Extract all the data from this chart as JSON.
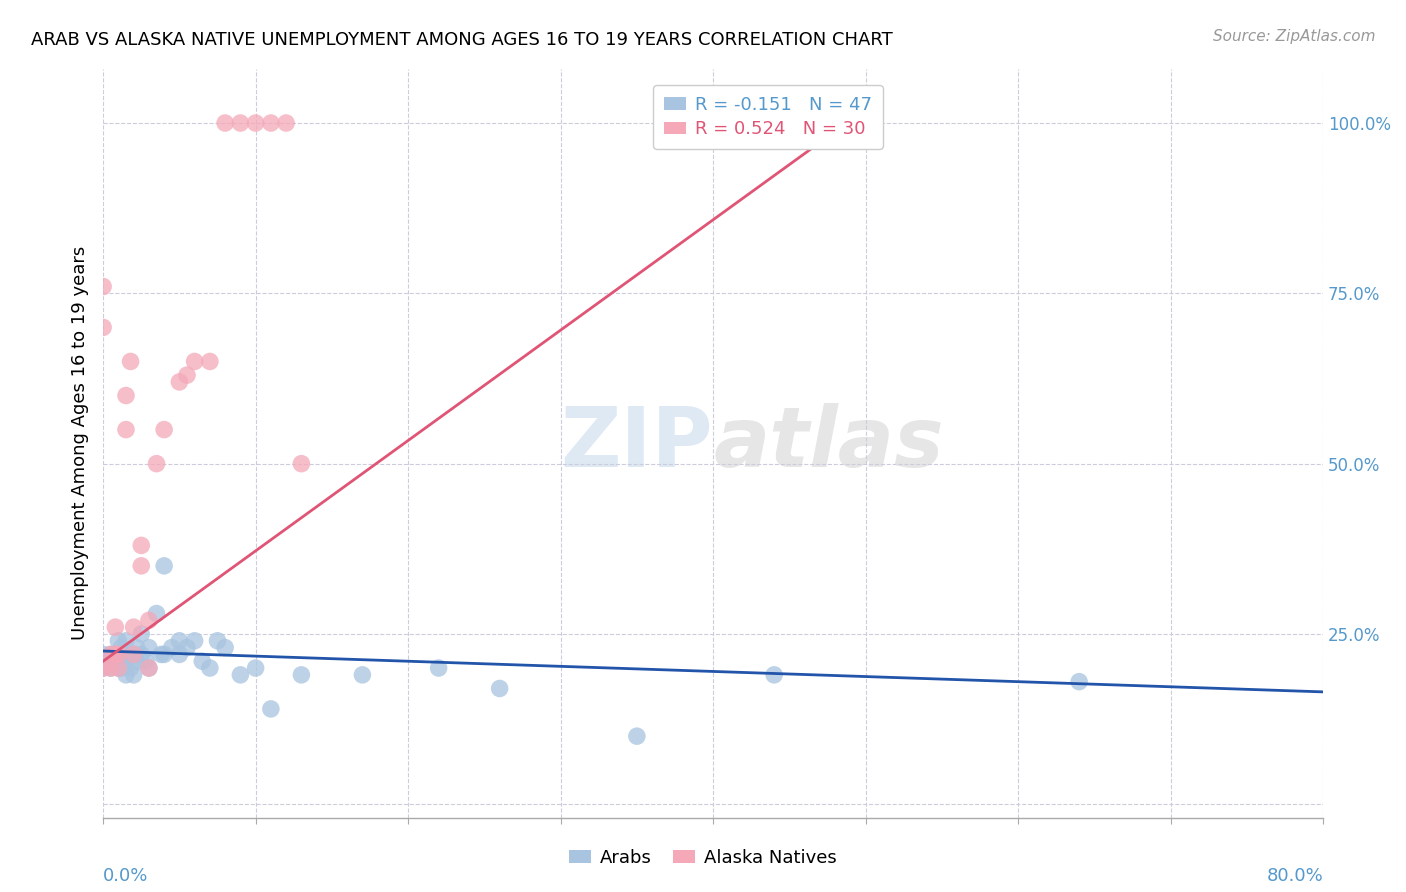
{
  "title": "ARAB VS ALASKA NATIVE UNEMPLOYMENT AMONG AGES 16 TO 19 YEARS CORRELATION CHART",
  "source": "Source: ZipAtlas.com",
  "ylabel": "Unemployment Among Ages 16 to 19 years",
  "xlim": [
    0.0,
    0.8
  ],
  "ylim": [
    -0.02,
    1.08
  ],
  "arab_color": "#a8c4e0",
  "alaska_color": "#f4a8b8",
  "arab_line_color": "#2255aa",
  "alaska_line_color": "#e05575",
  "arab_r": -0.151,
  "arab_n": 47,
  "alaska_r": 0.524,
  "alaska_n": 30,
  "arab_x": [
    0.0,
    0.0,
    0.005,
    0.005,
    0.008,
    0.01,
    0.01,
    0.01,
    0.012,
    0.012,
    0.015,
    0.015,
    0.015,
    0.018,
    0.018,
    0.02,
    0.02,
    0.022,
    0.022,
    0.025,
    0.025,
    0.028,
    0.03,
    0.03,
    0.035,
    0.038,
    0.04,
    0.04,
    0.045,
    0.05,
    0.05,
    0.055,
    0.06,
    0.065,
    0.07,
    0.075,
    0.08,
    0.09,
    0.1,
    0.11,
    0.13,
    0.17,
    0.22,
    0.26,
    0.35,
    0.44,
    0.64
  ],
  "arab_y": [
    0.2,
    0.22,
    0.2,
    0.22,
    0.21,
    0.2,
    0.22,
    0.24,
    0.2,
    0.23,
    0.19,
    0.21,
    0.24,
    0.2,
    0.22,
    0.19,
    0.22,
    0.21,
    0.23,
    0.22,
    0.25,
    0.21,
    0.2,
    0.23,
    0.28,
    0.22,
    0.22,
    0.35,
    0.23,
    0.22,
    0.24,
    0.23,
    0.24,
    0.21,
    0.2,
    0.24,
    0.23,
    0.19,
    0.2,
    0.14,
    0.19,
    0.19,
    0.2,
    0.17,
    0.1,
    0.19,
    0.18
  ],
  "alaska_x": [
    0.0,
    0.0,
    0.0,
    0.005,
    0.005,
    0.008,
    0.008,
    0.01,
    0.01,
    0.015,
    0.015,
    0.018,
    0.02,
    0.02,
    0.025,
    0.025,
    0.03,
    0.03,
    0.035,
    0.04,
    0.05,
    0.055,
    0.06,
    0.07,
    0.08,
    0.09,
    0.1,
    0.11,
    0.12,
    0.13
  ],
  "alaska_y": [
    0.2,
    0.7,
    0.76,
    0.2,
    0.22,
    0.22,
    0.26,
    0.2,
    0.22,
    0.55,
    0.6,
    0.65,
    0.22,
    0.26,
    0.35,
    0.38,
    0.2,
    0.27,
    0.5,
    0.55,
    0.62,
    0.63,
    0.65,
    0.65,
    1.0,
    1.0,
    1.0,
    1.0,
    1.0,
    0.5
  ],
  "arab_line_x": [
    0.0,
    0.8
  ],
  "arab_line_y": [
    0.225,
    0.165
  ],
  "alaska_line_x": [
    0.0,
    0.5
  ],
  "alaska_line_y": [
    0.21,
    1.02
  ]
}
